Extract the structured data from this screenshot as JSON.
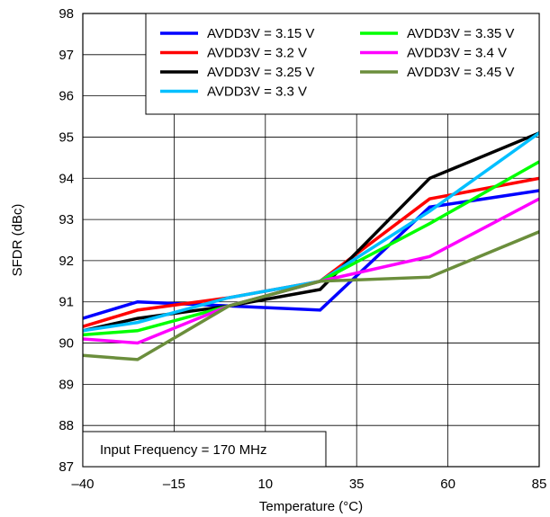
{
  "chart_data": {
    "type": "line",
    "title": "",
    "xlabel": "Temperature (°C)",
    "ylabel": "SFDR (dBc)",
    "xlim": [
      -40,
      85
    ],
    "ylim": [
      87,
      98
    ],
    "xticks": [
      -40,
      -15,
      10,
      35,
      60,
      85
    ],
    "xtick_labels": [
      "–40",
      "–15",
      "10",
      "35",
      "60",
      "85"
    ],
    "yticks": [
      87,
      88,
      89,
      90,
      91,
      92,
      93,
      94,
      95,
      96,
      97,
      98
    ],
    "ytick_labels": [
      "87",
      "88",
      "89",
      "90",
      "91",
      "92",
      "93",
      "94",
      "95",
      "96",
      "97",
      "98"
    ],
    "grid": true,
    "legend_position": "top-right",
    "annotation": "Input Frequency = 170 MHz",
    "series": [
      {
        "name": "AVDD3V = 3.15 V",
        "color": "#0000ff",
        "x": [
          -40,
          -25,
          0,
          25,
          55,
          85
        ],
        "y": [
          90.6,
          91.0,
          90.9,
          90.8,
          93.3,
          93.7
        ]
      },
      {
        "name": "AVDD3V = 3.2 V",
        "color": "#ff0000",
        "x": [
          -40,
          -25,
          0,
          25,
          55,
          85
        ],
        "y": [
          90.4,
          90.8,
          91.1,
          91.5,
          93.5,
          94.0
        ]
      },
      {
        "name": "AVDD3V = 3.25 V",
        "color": "#000000",
        "x": [
          -40,
          -25,
          0,
          25,
          55,
          85
        ],
        "y": [
          90.3,
          90.6,
          90.9,
          91.3,
          94.0,
          95.1
        ]
      },
      {
        "name": "AVDD3V = 3.3 V",
        "color": "#00bfff",
        "x": [
          -40,
          -25,
          0,
          25,
          55,
          85
        ],
        "y": [
          90.3,
          90.5,
          91.1,
          91.5,
          93.2,
          95.1
        ]
      },
      {
        "name": "AVDD3V = 3.35 V",
        "color": "#00ff00",
        "x": [
          -40,
          -25,
          0,
          25,
          55,
          85
        ],
        "y": [
          90.2,
          90.3,
          90.9,
          91.5,
          92.9,
          94.4
        ]
      },
      {
        "name": "AVDD3V = 3.4 V",
        "color": "#ff00ff",
        "x": [
          -40,
          -25,
          0,
          25,
          55,
          85
        ],
        "y": [
          90.1,
          90.0,
          90.9,
          91.5,
          92.1,
          93.5
        ]
      },
      {
        "name": "AVDD3V = 3.45 V",
        "color": "#6b8e3c",
        "x": [
          -40,
          -25,
          0,
          25,
          55,
          85
        ],
        "y": [
          89.7,
          89.6,
          90.9,
          91.5,
          91.6,
          92.7
        ]
      }
    ]
  }
}
